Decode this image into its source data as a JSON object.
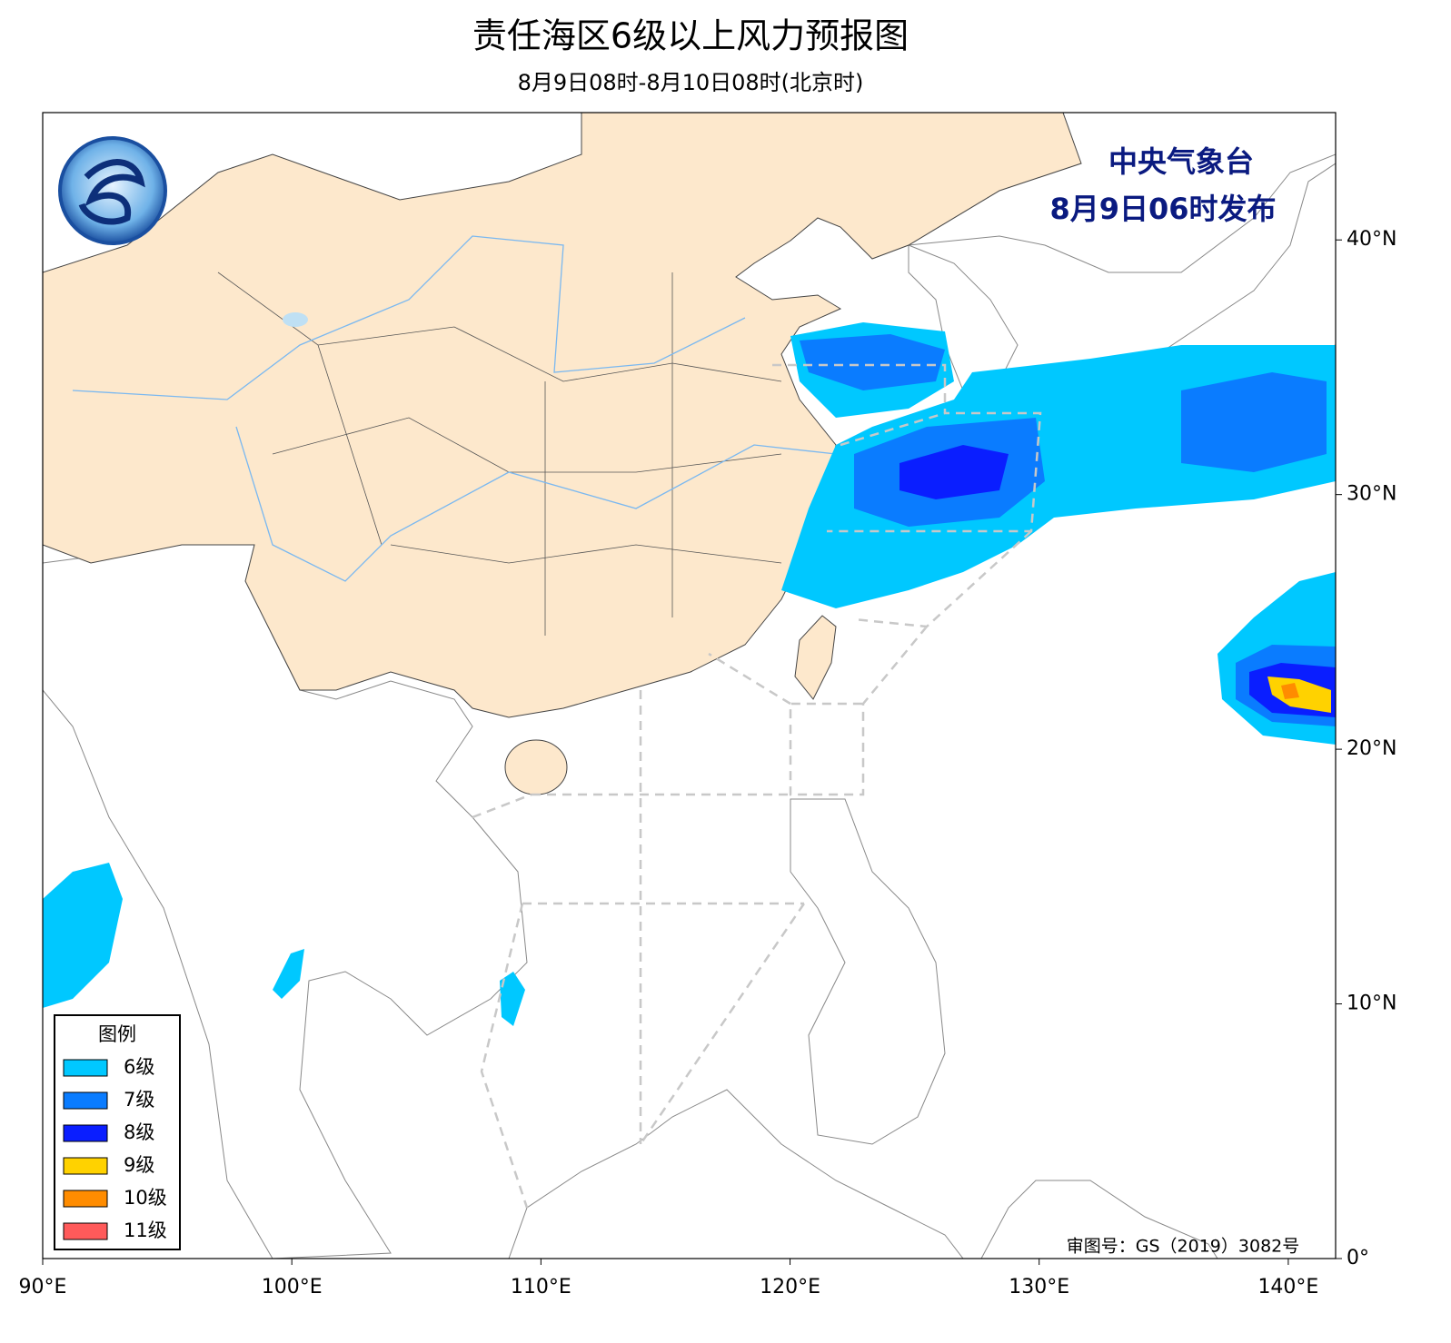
{
  "header": {
    "title": "责任海区6级以上风力预报图",
    "subtitle": "8月9日08时-8月10日08时(北京时)"
  },
  "issuer": {
    "agency": "中央气象台",
    "issued": "8月9日06时发布"
  },
  "legend": {
    "title": "图例",
    "items": [
      {
        "label": "6级",
        "color": "#00c8ff"
      },
      {
        "label": "7级",
        "color": "#0a7cff"
      },
      {
        "label": "8级",
        "color": "#0a1eff"
      },
      {
        "label": "9级",
        "color": "#ffd200"
      },
      {
        "label": "10级",
        "color": "#ff8c00"
      },
      {
        "label": "11级",
        "color": "#ff5a5a"
      }
    ]
  },
  "map": {
    "xlim": [
      90,
      141.9
    ],
    "ylim": [
      0,
      45
    ],
    "xticks": [
      {
        "value": 90,
        "label": "90°E"
      },
      {
        "value": 100,
        "label": "100°E"
      },
      {
        "value": 110,
        "label": "110°E"
      },
      {
        "value": 120,
        "label": "120°E"
      },
      {
        "value": 130,
        "label": "130°E"
      },
      {
        "value": 140,
        "label": "140°E"
      }
    ],
    "yticks": [
      {
        "value": 0,
        "label": "0°"
      },
      {
        "value": 10,
        "label": "10°N"
      },
      {
        "value": 20,
        "label": "20°N"
      },
      {
        "value": 30,
        "label": "30°N"
      },
      {
        "value": 40,
        "label": "40°N"
      }
    ]
  },
  "footer": {
    "review_number": "审图号：GS（2019）3082号"
  }
}
